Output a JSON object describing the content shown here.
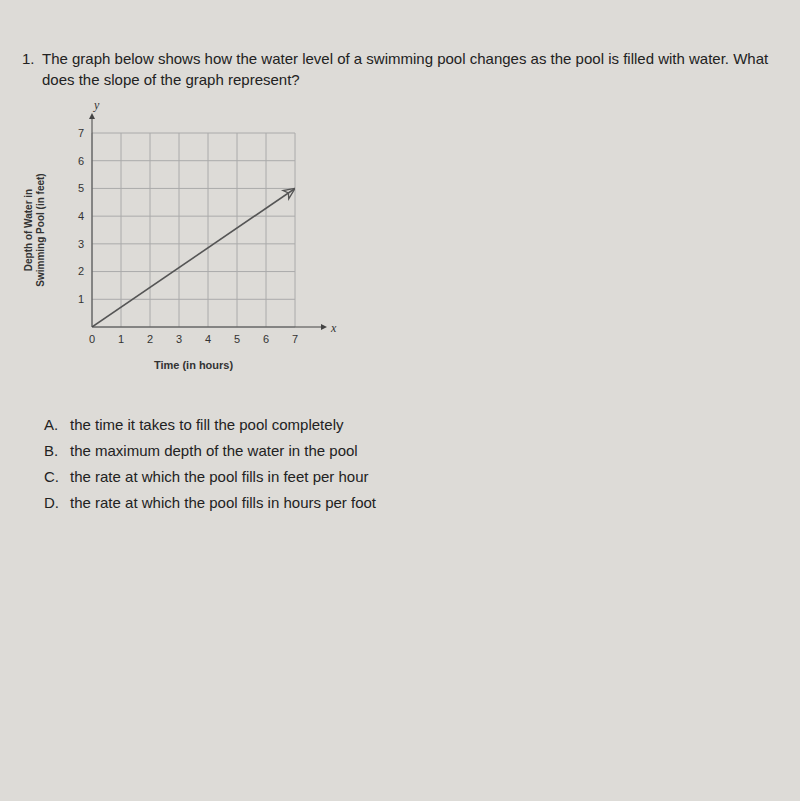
{
  "question": {
    "number": "1.",
    "text": "The graph below shows how the water level of a swimming pool changes as the pool is filled with water. What does the slope of the graph represent?"
  },
  "choices": [
    {
      "letter": "A.",
      "text": "the time it takes to fill the pool completely"
    },
    {
      "letter": "B.",
      "text": "the maximum depth of the water in the pool"
    },
    {
      "letter": "C.",
      "text": "the rate at which the pool fills in feet per hour"
    },
    {
      "letter": "D.",
      "text": "the rate at which the pool fills in hours per foot"
    }
  ],
  "chart_data": {
    "type": "line",
    "x": [
      0,
      7
    ],
    "values": [
      0,
      5
    ],
    "xlim": [
      0,
      7
    ],
    "ylim": [
      0,
      7
    ],
    "xticks": [
      0,
      1,
      2,
      3,
      4,
      5,
      6,
      7
    ],
    "yticks": [
      1,
      2,
      3,
      4,
      5,
      6,
      7
    ],
    "grid": true,
    "color": "#555555",
    "marker": "arrow",
    "x_label": "Time (in hours)",
    "y_label": [
      "Depth of Water in",
      "Swimming Pool (in feet)"
    ],
    "axis_symbols": {
      "x": "x",
      "y": "y"
    }
  }
}
